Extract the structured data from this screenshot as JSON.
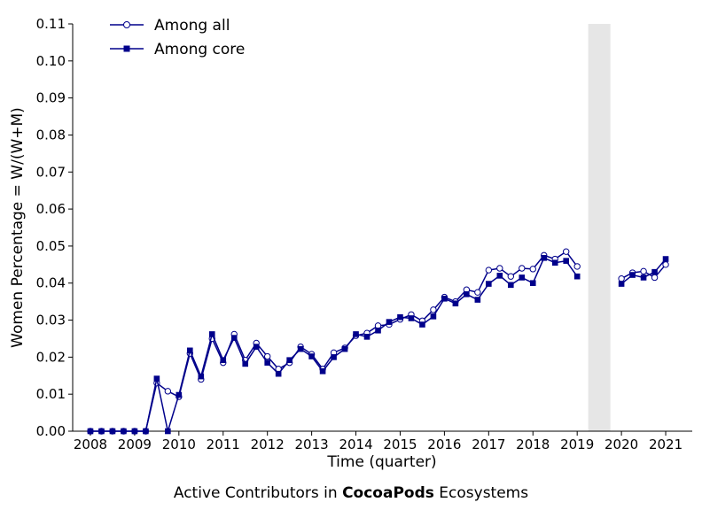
{
  "caption": {
    "prefix": "Active Contributors in",
    "bold": "CocoaPods",
    "suffix": "Ecosystems"
  },
  "chart_data": {
    "type": "line",
    "xlabel": "Time (quarter)",
    "ylabel": "Women Percentage = W/(W+M)",
    "xlim": [
      2007.6,
      2021.6
    ],
    "ylim": [
      0,
      0.11
    ],
    "xticks": [
      2008,
      2009,
      2010,
      2011,
      2012,
      2013,
      2014,
      2015,
      2016,
      2017,
      2018,
      2019,
      2020,
      2021
    ],
    "xtick_labels": [
      "2008",
      "2009",
      "2010",
      "2011",
      "2012",
      "2013",
      "2014",
      "2015",
      "2016",
      "2017",
      "2018",
      "2019",
      "2020",
      "2021"
    ],
    "yticks": [
      0,
      0.01,
      0.02,
      0.03,
      0.04,
      0.05,
      0.06,
      0.07,
      0.08,
      0.09,
      0.1,
      0.11
    ],
    "ytick_labels": [
      "0.00",
      "0.01",
      "0.02",
      "0.03",
      "0.04",
      "0.05",
      "0.06",
      "0.07",
      "0.08",
      "0.09",
      "0.10",
      "0.11"
    ],
    "grid": false,
    "legend_position": "top-left",
    "shaded_region": [
      2019.25,
      2019.75
    ],
    "shaded_color": "#e6e6e6",
    "line_color": "#00008b",
    "x": [
      2008.0,
      2008.25,
      2008.5,
      2008.75,
      2009.0,
      2009.25,
      2009.5,
      2009.75,
      2010.0,
      2010.25,
      2010.5,
      2010.75,
      2011.0,
      2011.25,
      2011.5,
      2011.75,
      2012.0,
      2012.25,
      2012.5,
      2012.75,
      2013.0,
      2013.25,
      2013.5,
      2013.75,
      2014.0,
      2014.25,
      2014.5,
      2014.75,
      2015.0,
      2015.25,
      2015.5,
      2015.75,
      2016.0,
      2016.25,
      2016.5,
      2016.75,
      2017.0,
      2017.25,
      2017.5,
      2017.75,
      2018.0,
      2018.25,
      2018.5,
      2018.75,
      2019.0,
      2019.25,
      2019.5,
      2019.75,
      2020.0,
      2020.25,
      2020.5,
      2020.75,
      2021.0
    ],
    "series": [
      {
        "name": "Among all",
        "marker": "circle-open",
        "values": [
          0.0,
          0.0,
          0.0,
          0.0,
          0.0,
          0.0,
          0.013,
          0.0108,
          0.0093,
          0.021,
          0.014,
          0.025,
          0.0185,
          0.0262,
          0.0192,
          0.0238,
          0.0202,
          0.0168,
          0.0185,
          0.0228,
          0.0208,
          0.0168,
          0.0212,
          0.0225,
          0.0258,
          0.0265,
          0.0285,
          0.0288,
          0.0302,
          0.0315,
          0.0298,
          0.0328,
          0.0362,
          0.035,
          0.0382,
          0.0375,
          0.0435,
          0.044,
          0.0418,
          0.044,
          0.0438,
          0.0475,
          0.0465,
          0.0485,
          0.0445,
          null,
          null,
          null,
          0.0412,
          0.0428,
          0.0432,
          0.0415,
          0.045
        ]
      },
      {
        "name": "Among core",
        "marker": "square-filled",
        "values": [
          0.0,
          0.0,
          0.0,
          0.0,
          0.0,
          0.0,
          0.0142,
          0.0,
          0.0098,
          0.0218,
          0.0148,
          0.0262,
          0.0192,
          0.0252,
          0.0182,
          0.0228,
          0.0185,
          0.0155,
          0.0192,
          0.0222,
          0.0202,
          0.0162,
          0.02,
          0.0222,
          0.0262,
          0.0255,
          0.0272,
          0.0295,
          0.0308,
          0.0305,
          0.0288,
          0.031,
          0.0358,
          0.0345,
          0.037,
          0.0355,
          0.0398,
          0.042,
          0.0395,
          0.0415,
          0.04,
          0.0468,
          0.0455,
          0.046,
          0.0418,
          null,
          null,
          null,
          0.0398,
          0.0422,
          0.0415,
          0.043,
          0.0465
        ]
      }
    ]
  }
}
